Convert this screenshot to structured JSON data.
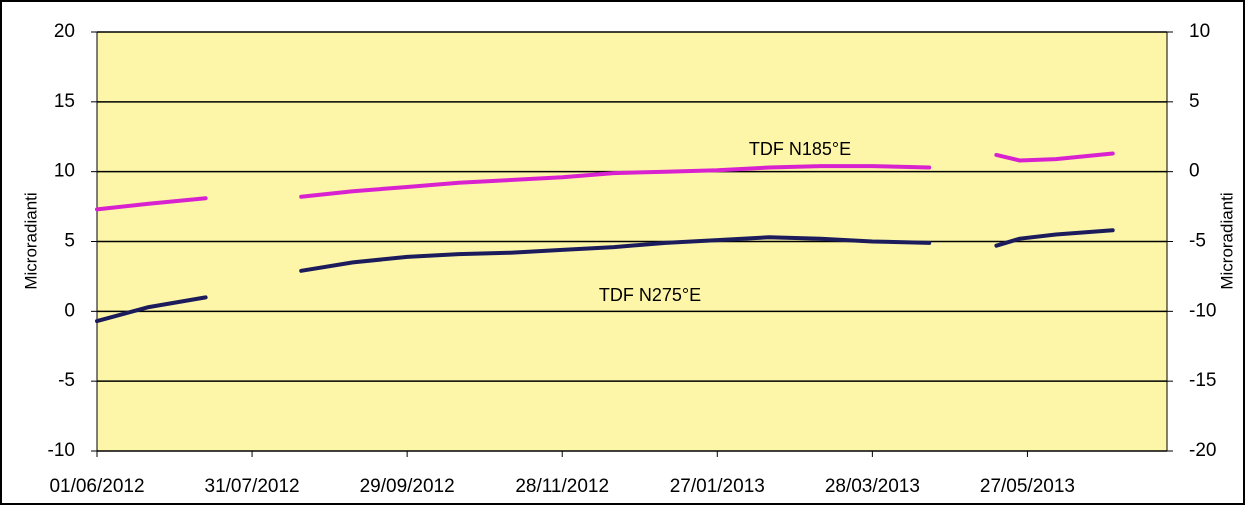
{
  "chart_data": {
    "type": "line",
    "y_label": "Microradianti",
    "y2_label": "Microradianti",
    "annotations": [
      "TDF N185°E",
      "TDF N275°E"
    ],
    "x": [
      "01/06/2012",
      "21/06/2012",
      "13/07/2012",
      "01/08/2012",
      "19/08/2012",
      "08/09/2012",
      "29/09/2012",
      "19/10/2012",
      "08/11/2012",
      "28/11/2012",
      "18/12/2012",
      "07/01/2013",
      "27/01/2013",
      "16/02/2013",
      "08/03/2013",
      "28/03/2013",
      "19/04/2013",
      "02/05/2013",
      "15/05/2013",
      "24/05/2013",
      "07/06/2013",
      "29/06/2013"
    ],
    "series": [
      {
        "name": "TDF N185°E",
        "color": "#d822d0",
        "values": [
          7.3,
          7.7,
          8.1,
          null,
          8.2,
          8.6,
          8.9,
          9.2,
          9.4,
          9.6,
          9.9,
          10.0,
          10.1,
          10.3,
          10.4,
          10.4,
          10.3,
          null,
          11.2,
          10.8,
          10.9,
          11.3
        ]
      },
      {
        "name": "TDF N275°E",
        "color": "#1c1c5c",
        "values": [
          -0.7,
          0.3,
          1.0,
          null,
          2.9,
          3.5,
          3.9,
          4.1,
          4.2,
          4.4,
          4.6,
          4.9,
          5.1,
          5.3,
          5.2,
          5.0,
          4.9,
          null,
          4.7,
          5.2,
          5.5,
          5.8
        ]
      }
    ],
    "xlim": [
      "01/06/2012",
      "20/07/2013"
    ],
    "xticks": [
      "01/06/2012",
      "31/07/2012",
      "29/09/2012",
      "28/11/2012",
      "27/01/2013",
      "28/03/2013",
      "27/05/2013"
    ],
    "ylim": [
      -10,
      20
    ],
    "yticks": [
      -10,
      -5,
      0,
      5,
      10,
      15,
      20
    ],
    "y2lim": [
      -20,
      10
    ],
    "y2ticks": [
      -20,
      -15,
      -10,
      -5,
      0,
      5,
      10
    ],
    "grid": true,
    "background": "#fdf6a8"
  }
}
